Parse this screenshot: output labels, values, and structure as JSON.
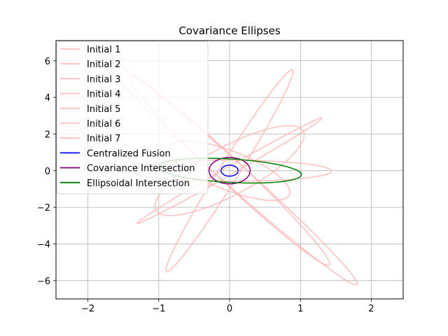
{
  "chart_data": {
    "type": "line",
    "title": "Covariance Ellipses",
    "xlabel": "",
    "ylabel": "",
    "xlim": [
      -2.45,
      2.45
    ],
    "ylim": [
      -7.0,
      7.1
    ],
    "xticks": [
      -2,
      -1,
      0,
      1,
      2
    ],
    "yticks": [
      -6,
      -4,
      -2,
      0,
      2,
      4,
      6
    ],
    "xtick_labels": [
      "−2",
      "−1",
      "0",
      "1",
      "2"
    ],
    "ytick_labels": [
      "−6",
      "−4",
      "−2",
      "0",
      "2",
      "4",
      "6"
    ],
    "grid": true,
    "legend_position": "upper-left",
    "series": [
      {
        "name": "Initial 1",
        "color": "#ffb3b3",
        "opacity": 0.85,
        "center": [
          0,
          0
        ],
        "semi_axes": [
          3.16,
          0.105
        ],
        "angle_deg": 65.7
      },
      {
        "name": "Initial 2",
        "color": "#ffb3b3",
        "opacity": 0.85,
        "center": [
          0,
          0
        ],
        "semi_axes": [
          1.44,
          0.58
        ],
        "angle_deg": -1.0
      },
      {
        "name": "Initial 3",
        "color": "#ffb3b3",
        "opacity": 0.85,
        "center": [
          0,
          0
        ],
        "semi_axes": [
          5.58,
          0.16
        ],
        "angle_deg": 80.9
      },
      {
        "name": "Initial 4",
        "color": "#ffb3b3",
        "opacity": 0.85,
        "center": [
          0,
          0
        ],
        "semi_axes": [
          5.36,
          0.24
        ],
        "angle_deg": -74.9
      },
      {
        "name": "Initial 5",
        "color": "#ffb3b3",
        "opacity": 0.85,
        "center": [
          0,
          0
        ],
        "semi_axes": [
          2.6,
          0.6
        ],
        "angle_deg": 70.0
      },
      {
        "name": "Initial 6",
        "color": "#ffb3b3",
        "opacity": 0.85,
        "center": [
          0,
          0
        ],
        "semi_axes": [
          6.49,
          0.24
        ],
        "angle_deg": -74.0
      },
      {
        "name": "Initial 7",
        "color": "#ffb3b3",
        "opacity": 0.85,
        "center": [
          0,
          0
        ],
        "semi_axes": [
          1.75,
          0.55
        ],
        "angle_deg": -67.0
      },
      {
        "name": "Centralized Fusion",
        "color": "#0000ff",
        "opacity": 1.0,
        "center": [
          0,
          0
        ],
        "semi_axes": [
          0.12,
          0.3
        ],
        "angle_deg": 0
      },
      {
        "name": "Covariance Intersection",
        "color": "#800080",
        "opacity": 1.0,
        "center": [
          0,
          0
        ],
        "semi_axes": [
          0.29,
          0.72
        ],
        "angle_deg": 0
      },
      {
        "name": "Ellipsoidal Intersection",
        "color": "#008000",
        "opacity": 1.0,
        "center": [
          0,
          0
        ],
        "semi_axes": [
          1.05,
          0.62
        ],
        "angle_deg": -18.7
      }
    ]
  }
}
